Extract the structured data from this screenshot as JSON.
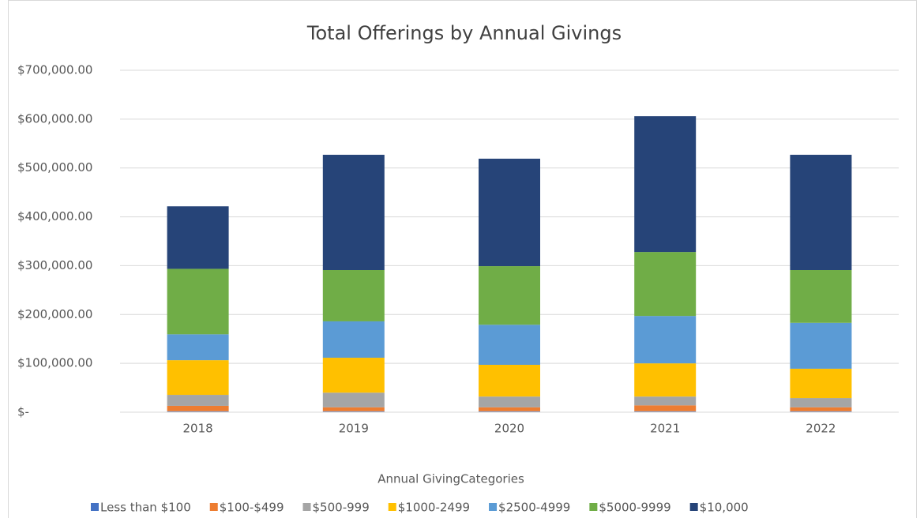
{
  "chart_data": {
    "type": "stacked_bar",
    "title": "Total Offerings by Annual Givings",
    "x_label": "Annual GivingCategories",
    "categories": [
      "2018",
      "2019",
      "2020",
      "2021",
      "2022"
    ],
    "series": [
      {
        "name": "Less than $100",
        "color": "#4472c4",
        "values": [
          2000,
          2000,
          2000,
          2000,
          2000
        ]
      },
      {
        "name": "$100-$499",
        "color": "#ed7d31",
        "values": [
          11000,
          8000,
          8000,
          12000,
          8000
        ]
      },
      {
        "name": "$500-999",
        "color": "#a5a5a5",
        "values": [
          22500,
          30000,
          22000,
          18000,
          19000
        ]
      },
      {
        "name": "$1000-2499",
        "color": "#ffc000",
        "values": [
          71000,
          71500,
          65000,
          68000,
          60000
        ]
      },
      {
        "name": "$2500-4999",
        "color": "#5b9bd5",
        "values": [
          53000,
          74500,
          82000,
          97000,
          94000
        ]
      },
      {
        "name": "$5000-9999",
        "color": "#70ad47",
        "values": [
          134000,
          105000,
          120000,
          131000,
          108000
        ]
      },
      {
        "name": "$10,000",
        "color": "#264478",
        "values": [
          128000,
          236000,
          220000,
          278000,
          236000
        ]
      }
    ],
    "ylim": [
      0,
      700000
    ],
    "yticks": [
      {
        "value": 0,
        "label": "$-"
      },
      {
        "value": 100000,
        "label": "$100,000.00"
      },
      {
        "value": 200000,
        "label": "$200,000.00"
      },
      {
        "value": 300000,
        "label": "$300,000.00"
      },
      {
        "value": 400000,
        "label": "$400,000.00"
      },
      {
        "value": 500000,
        "label": "$500,000.00"
      },
      {
        "value": 600000,
        "label": "$600,000.00"
      },
      {
        "value": 700000,
        "label": "$700,000.00"
      }
    ],
    "grid": true,
    "legend": "bottom"
  }
}
